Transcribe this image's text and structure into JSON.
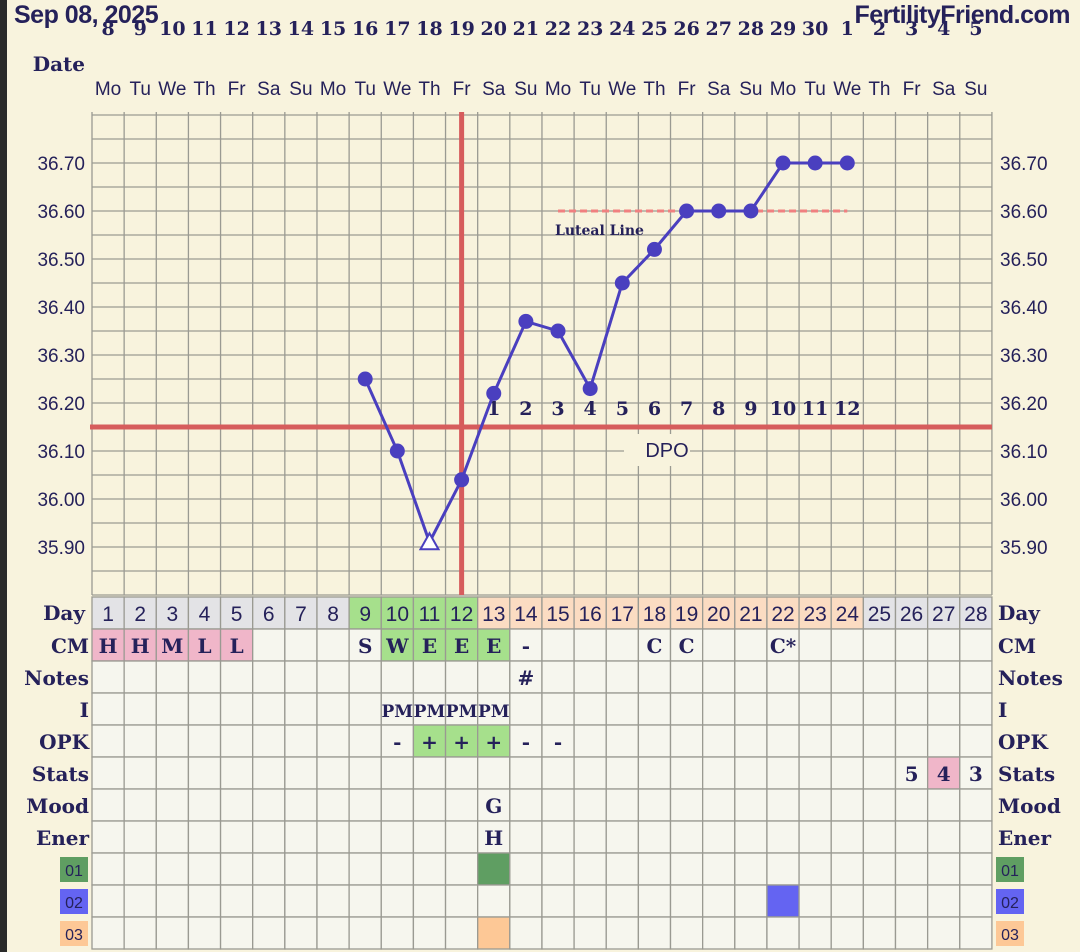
{
  "header": {
    "date": "Sep 08, 2025",
    "brand": "FertilityFriend.com"
  },
  "date_row_label": "Date",
  "dates": [
    "8",
    "9",
    "10",
    "11",
    "12",
    "13",
    "14",
    "15",
    "16",
    "17",
    "18",
    "19",
    "20",
    "21",
    "22",
    "23",
    "24",
    "25",
    "26",
    "27",
    "28",
    "29",
    "30",
    "1",
    "2",
    "3",
    "4",
    "5"
  ],
  "weekdays": [
    "Mo",
    "Tu",
    "We",
    "Th",
    "Fr",
    "Sa",
    "Su",
    "Mo",
    "Tu",
    "We",
    "Th",
    "Fr",
    "Sa",
    "Su",
    "Mo",
    "Tu",
    "We",
    "Th",
    "Fr",
    "Sa",
    "Su",
    "Mo",
    "Tu",
    "We",
    "Th",
    "Fr",
    "Sa",
    "Su"
  ],
  "colors": {
    "background": "#f8f3dd",
    "cell": "#f6f6ee",
    "grid": "#9a9a92",
    "temp_line": "#4a3fbf",
    "coverline": "#d65c5c",
    "luteal": "#f08080",
    "text": "#25215a",
    "day_gray": "#e3e3e6",
    "day_green": "#a6e08c",
    "day_peach": "#fbdcc2",
    "pink": "#f0b6c9",
    "green": "#a6e08c",
    "sticker_01": "#5f9e62",
    "sticker_02": "#6464f2",
    "sticker_03": "#fdc896"
  },
  "chart_data": {
    "type": "line",
    "x_label": "Day",
    "ylim": [
      35.8,
      36.8
    ],
    "y_ticks": [
      "36.70",
      "36.60",
      "36.50",
      "36.40",
      "36.30",
      "36.20",
      "36.10",
      "36.00",
      "35.90"
    ],
    "grid": true,
    "series": [
      {
        "days": [
          9,
          10,
          11,
          12,
          13,
          14,
          15,
          16,
          17,
          18,
          19,
          20,
          21,
          22,
          23,
          24
        ],
        "values": [
          36.25,
          36.1,
          35.91,
          36.04,
          36.22,
          36.37,
          36.35,
          36.23,
          36.45,
          36.52,
          36.6,
          36.6,
          36.6,
          36.7,
          36.7,
          36.7
        ],
        "open_marker_days": [
          11
        ]
      }
    ],
    "coverline": 36.15,
    "ovulation_day": 12,
    "luteal_line": {
      "label": "Luteal Line",
      "value": 36.6,
      "from_day": 15,
      "to_day": 24
    },
    "dpo": {
      "label": "DPO",
      "start_day": 13,
      "numbers": [
        "1",
        "2",
        "3",
        "4",
        "5",
        "6",
        "7",
        "8",
        "9",
        "10",
        "11",
        "12"
      ]
    }
  },
  "table": {
    "day_label": "Day",
    "days": [
      "1",
      "2",
      "3",
      "4",
      "5",
      "6",
      "7",
      "8",
      "9",
      "10",
      "11",
      "12",
      "13",
      "14",
      "15",
      "16",
      "17",
      "18",
      "19",
      "20",
      "21",
      "22",
      "23",
      "24",
      "25",
      "26",
      "27",
      "28"
    ],
    "day_colors": [
      "gray",
      "gray",
      "gray",
      "gray",
      "gray",
      "gray",
      "gray",
      "gray",
      "green",
      "green",
      "green",
      "green",
      "peach",
      "peach",
      "peach",
      "peach",
      "peach",
      "peach",
      "peach",
      "peach",
      "peach",
      "peach",
      "peach",
      "peach",
      "gray",
      "gray",
      "gray",
      "gray"
    ],
    "rows": [
      {
        "label": "CM",
        "cells": {
          "1": "H",
          "2": "H",
          "3": "M",
          "4": "L",
          "5": "L",
          "9": "S",
          "10": "W",
          "11": "E",
          "12": "E",
          "13": "E",
          "14": "-",
          "18": "C",
          "19": "C",
          "22": "C*"
        },
        "fills": {
          "1": "pink",
          "2": "pink",
          "3": "pink",
          "4": "pink",
          "5": "pink",
          "10": "green",
          "11": "green",
          "12": "green",
          "13": "green"
        }
      },
      {
        "label": "Notes",
        "cells": {
          "14": "#"
        },
        "fills": {}
      },
      {
        "label": "I",
        "cells": {
          "10": "PM",
          "11": "PM",
          "12": "PM",
          "13": "PM"
        },
        "fills": {}
      },
      {
        "label": "OPK",
        "cells": {
          "10": "-",
          "11": "+",
          "12": "+",
          "13": "+",
          "14": "-",
          "15": "-"
        },
        "fills": {
          "11": "green",
          "12": "green",
          "13": "green"
        }
      },
      {
        "label": "Stats",
        "cells": {
          "26": "5",
          "27": "4",
          "28": "3"
        },
        "fills": {
          "27": "pink"
        }
      },
      {
        "label": "Mood",
        "cells": {
          "13": "G"
        },
        "fills": {}
      },
      {
        "label": "Ener",
        "cells": {
          "13": "H"
        },
        "fills": {}
      },
      {
        "label": "01",
        "sticker": "sticker_01",
        "cells": {},
        "fills": {
          "13": "sticker_01"
        }
      },
      {
        "label": "02",
        "sticker": "sticker_02",
        "cells": {},
        "fills": {
          "22": "sticker_02"
        }
      },
      {
        "label": "03",
        "sticker": "sticker_03",
        "cells": {},
        "fills": {
          "13": "sticker_03"
        }
      }
    ]
  }
}
